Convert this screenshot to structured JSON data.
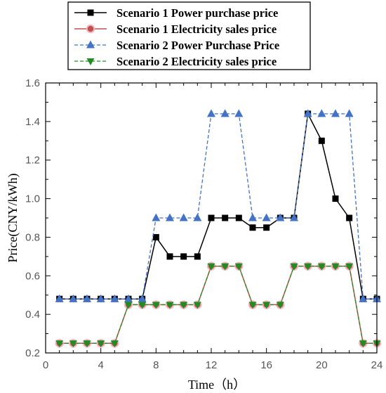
{
  "chart_data": {
    "type": "line",
    "title": "",
    "xlabel": "Time（h）",
    "ylabel": "Price(CNY/kWh)",
    "xlim": [
      0,
      24
    ],
    "ylim": [
      0.2,
      1.6
    ],
    "xticks": [
      0,
      4,
      8,
      12,
      16,
      20,
      24
    ],
    "xtick_labels": [
      "0",
      "4",
      "8",
      "12",
      "16",
      "20",
      "24"
    ],
    "yticks": [
      0.2,
      0.4,
      0.6,
      0.8,
      1.0,
      1.2,
      1.4,
      1.6
    ],
    "ytick_labels": [
      "0.2",
      "0.4",
      "0.6",
      "0.8",
      "1.0",
      "1.2",
      "1.4",
      "1.6"
    ],
    "grid": false,
    "legend_position": "top-center",
    "x": [
      1,
      2,
      3,
      4,
      5,
      6,
      7,
      8,
      9,
      10,
      11,
      12,
      13,
      14,
      15,
      16,
      17,
      18,
      19,
      20,
      21,
      22,
      23,
      24
    ],
    "series": [
      {
        "name": "Scenario 1 Power purchase price",
        "color": "#000000",
        "line_style": "solid",
        "marker": "square",
        "values": [
          0.48,
          0.48,
          0.48,
          0.48,
          0.48,
          0.48,
          0.48,
          0.8,
          0.7,
          0.7,
          0.7,
          0.9,
          0.9,
          0.9,
          0.85,
          0.85,
          0.9,
          0.9,
          1.44,
          1.3,
          1.0,
          0.9,
          0.48,
          0.48
        ]
      },
      {
        "name": "Scenario 1 Electricity sales price",
        "color": "#c0504d",
        "line_style": "solid",
        "marker": "circle",
        "values": [
          0.25,
          0.25,
          0.25,
          0.25,
          0.25,
          0.45,
          0.45,
          0.45,
          0.45,
          0.45,
          0.45,
          0.65,
          0.65,
          0.65,
          0.45,
          0.45,
          0.45,
          0.65,
          0.65,
          0.65,
          0.65,
          0.65,
          0.25,
          0.25
        ]
      },
      {
        "name": "Scenario 2 Power Purchase Price",
        "color": "#4472c4",
        "line_style": "dashed",
        "marker": "triangle-up",
        "values": [
          0.48,
          0.48,
          0.48,
          0.48,
          0.48,
          0.48,
          0.48,
          0.9,
          0.9,
          0.9,
          0.9,
          1.44,
          1.44,
          1.44,
          0.9,
          0.9,
          0.9,
          0.9,
          1.44,
          1.44,
          1.44,
          1.44,
          0.48,
          0.48
        ]
      },
      {
        "name": "Scenario 2 Electricity sales price",
        "color": "#228b22",
        "line_style": "dashed",
        "marker": "triangle-down",
        "values": [
          0.25,
          0.25,
          0.25,
          0.25,
          0.25,
          0.45,
          0.45,
          0.45,
          0.45,
          0.45,
          0.45,
          0.65,
          0.65,
          0.65,
          0.45,
          0.45,
          0.45,
          0.65,
          0.65,
          0.65,
          0.65,
          0.65,
          0.25,
          0.25
        ]
      }
    ]
  }
}
